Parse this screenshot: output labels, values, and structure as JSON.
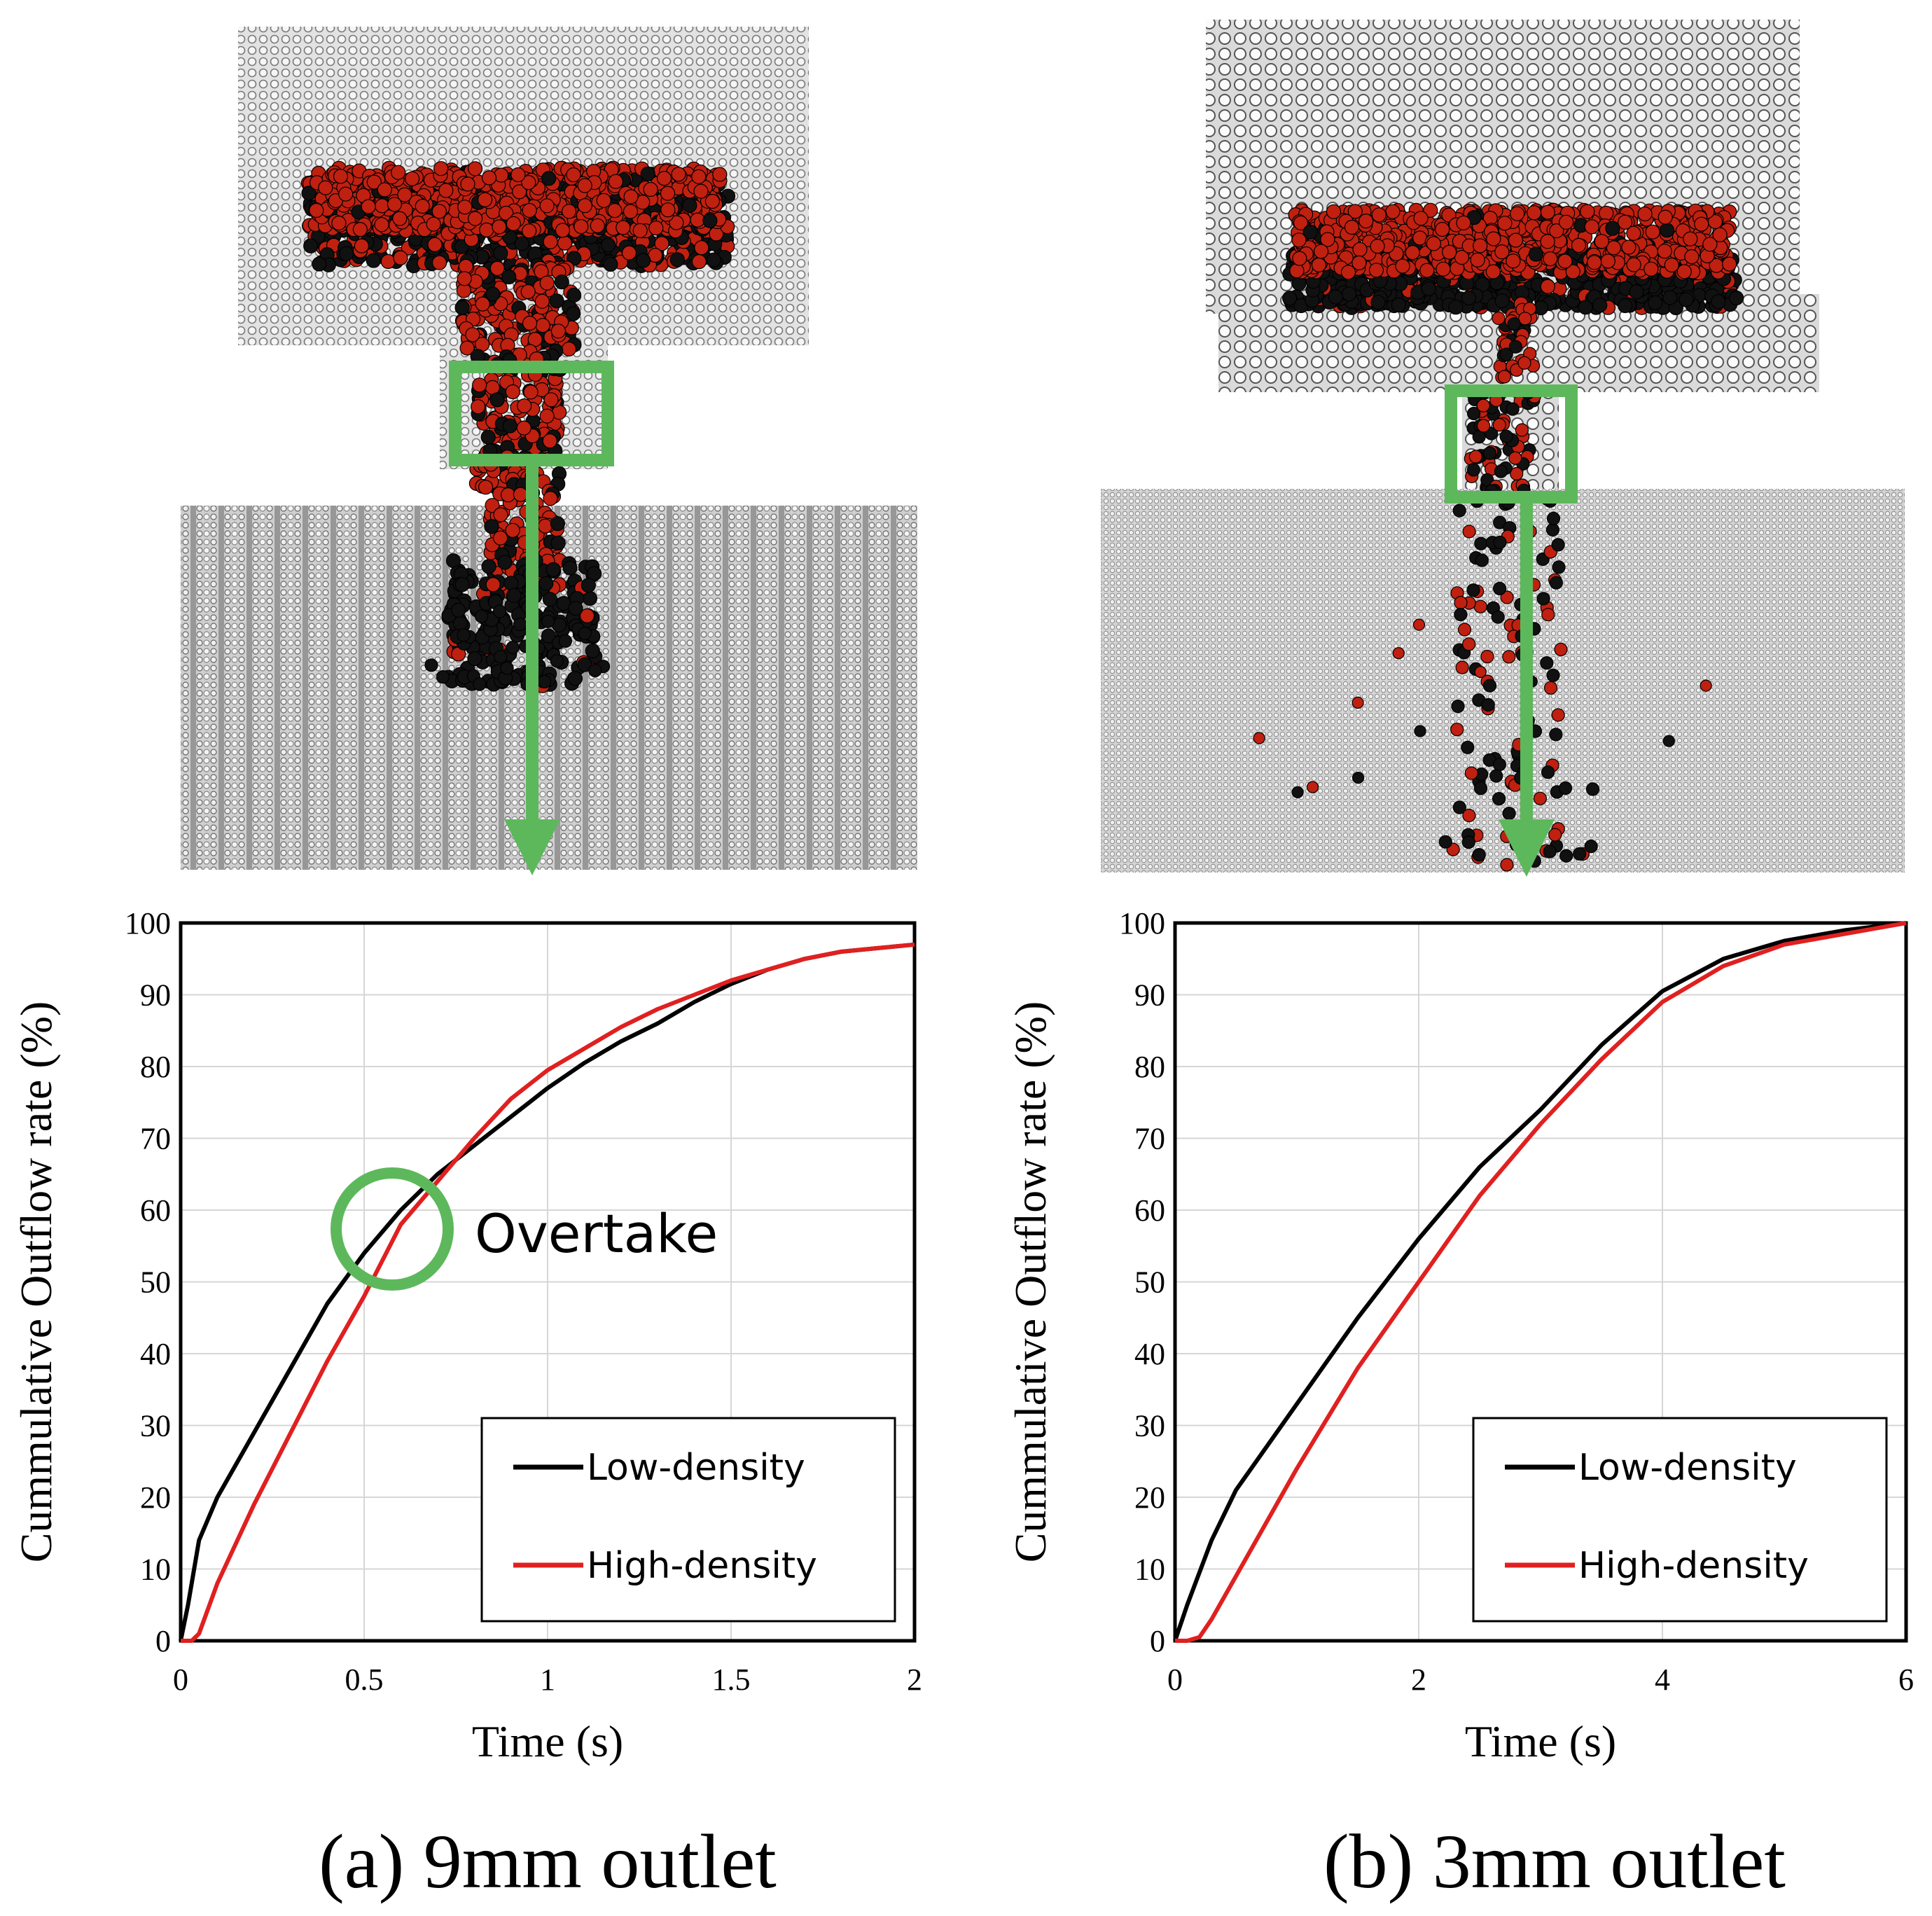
{
  "colors": {
    "low_density": "#000000",
    "high_density": "#e02020",
    "highlight": "#5db85c",
    "mesh": "#9a9a9a",
    "particle_red": "#c02010",
    "particle_black": "#111111"
  },
  "panels": [
    {
      "id": "a",
      "caption": "(a) 9mm outlet",
      "annotation": "Overtake",
      "illustration": "simulation snapshot: particles flowing through 9mm outlet"
    },
    {
      "id": "b",
      "caption": "(b) 3mm outlet",
      "annotation": "",
      "illustration": "simulation snapshot: particles flowing through 3mm outlet"
    }
  ],
  "chart_data": [
    {
      "type": "line",
      "xlabel": "Time (s)",
      "ylabel": "Cummulative Outflow rate (%)",
      "xlim": [
        0,
        2
      ],
      "ylim": [
        0,
        100
      ],
      "xticks": [
        0,
        0.5,
        1,
        1.5,
        2
      ],
      "xtick_labels": [
        "0",
        "0.5",
        "1",
        "1.5",
        "2"
      ],
      "yticks": [
        0,
        10,
        20,
        30,
        40,
        50,
        60,
        70,
        80,
        90,
        100
      ],
      "grid": true,
      "legend_position": "bottom-right",
      "series": [
        {
          "name": "Low-density",
          "color": "#000000",
          "x": [
            0,
            0.02,
            0.05,
            0.1,
            0.2,
            0.3,
            0.4,
            0.5,
            0.6,
            0.7,
            0.8,
            0.9,
            1.0,
            1.1,
            1.2,
            1.3,
            1.4,
            1.5,
            1.6,
            1.7,
            1.8,
            1.9,
            2.0
          ],
          "y": [
            0,
            5,
            14,
            20,
            29,
            38,
            47,
            54,
            60,
            65,
            69,
            73,
            77,
            80.5,
            83.5,
            86,
            89,
            91.5,
            93.5,
            95,
            96,
            96.5,
            97
          ]
        },
        {
          "name": "High-density",
          "color": "#e02020",
          "x": [
            0,
            0.03,
            0.05,
            0.1,
            0.2,
            0.3,
            0.4,
            0.5,
            0.6,
            0.7,
            0.8,
            0.9,
            1.0,
            1.1,
            1.2,
            1.3,
            1.4,
            1.5,
            1.6,
            1.7,
            1.8,
            1.9,
            2.0
          ],
          "y": [
            0,
            0,
            1,
            8,
            19,
            29,
            39,
            48,
            58,
            64,
            70,
            75.5,
            79.5,
            82.5,
            85.5,
            88,
            90,
            92,
            93.5,
            95,
            96,
            96.5,
            97
          ]
        }
      ]
    },
    {
      "type": "line",
      "xlabel": "Time (s)",
      "ylabel": "Cummulative Outflow rate (%)",
      "xlim": [
        0,
        6
      ],
      "ylim": [
        0,
        100
      ],
      "xticks": [
        0,
        2,
        4,
        6
      ],
      "xtick_labels": [
        "0",
        "2",
        "4",
        "6"
      ],
      "yticks": [
        0,
        10,
        20,
        30,
        40,
        50,
        60,
        70,
        80,
        90,
        100
      ],
      "grid": true,
      "legend_position": "bottom-right",
      "series": [
        {
          "name": "Low-density",
          "color": "#000000",
          "x": [
            0,
            0.1,
            0.3,
            0.5,
            1.0,
            1.5,
            2.0,
            2.5,
            3.0,
            3.5,
            4.0,
            4.5,
            5.0,
            5.5,
            6.0
          ],
          "y": [
            0,
            5,
            14,
            21,
            33,
            45,
            56,
            66,
            74,
            83,
            90.5,
            95,
            97.5,
            99,
            100
          ]
        },
        {
          "name": "High-density",
          "color": "#e02020",
          "x": [
            0,
            0.1,
            0.2,
            0.3,
            0.5,
            1.0,
            1.5,
            2.0,
            2.5,
            3.0,
            3.5,
            4.0,
            4.5,
            5.0,
            5.5,
            6.0
          ],
          "y": [
            0,
            0,
            0.5,
            3,
            9,
            24,
            38,
            50,
            62,
            72,
            81,
            89,
            94,
            97,
            98.5,
            100
          ]
        }
      ]
    }
  ]
}
